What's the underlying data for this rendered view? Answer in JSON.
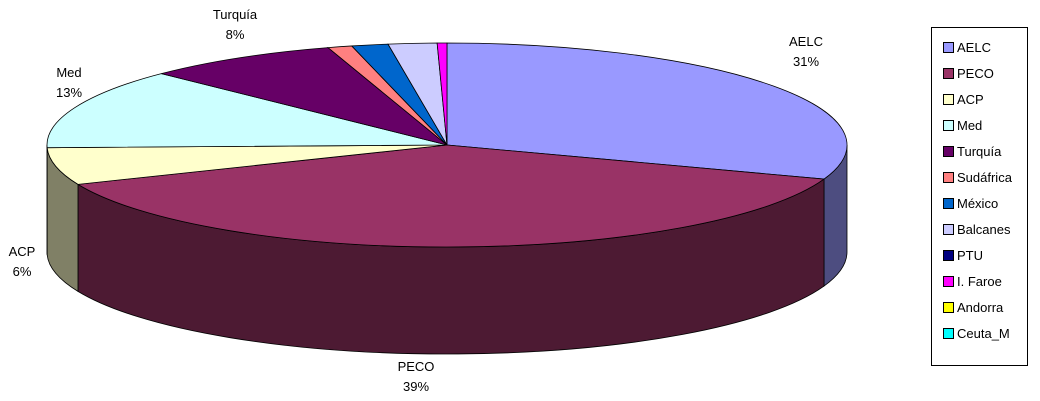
{
  "chart_data": {
    "type": "pie",
    "title": "",
    "variant": "3d",
    "categories": [
      "AELC",
      "PECO",
      "ACP",
      "Med",
      "Turquía",
      "Sudáfrica",
      "México",
      "Balcanes",
      "PTU",
      "I. Faroe",
      "Andorra",
      "Ceuta_M"
    ],
    "values": [
      31,
      39,
      6,
      13,
      8,
      1,
      1.5,
      2,
      0,
      0.4,
      0,
      0
    ],
    "colors": [
      "#9999FF",
      "#993366",
      "#FFFFCC",
      "#CCFFFF",
      "#660066",
      "#FF8080",
      "#0066CC",
      "#CCCCFF",
      "#000080",
      "#FF00FF",
      "#FFFF00",
      "#00FFFF"
    ],
    "data_labels": [
      {
        "category": "AELC",
        "name": "AELC",
        "percent": "31%"
      },
      {
        "category": "PECO",
        "name": "PECO",
        "percent": "39%"
      },
      {
        "category": "ACP",
        "name": "ACP",
        "percent": "6%"
      },
      {
        "category": "Med",
        "name": "Med",
        "percent": "13%"
      },
      {
        "category": "Turquía",
        "name": "Turquía",
        "percent": "8%"
      }
    ],
    "legend_position": "right"
  }
}
